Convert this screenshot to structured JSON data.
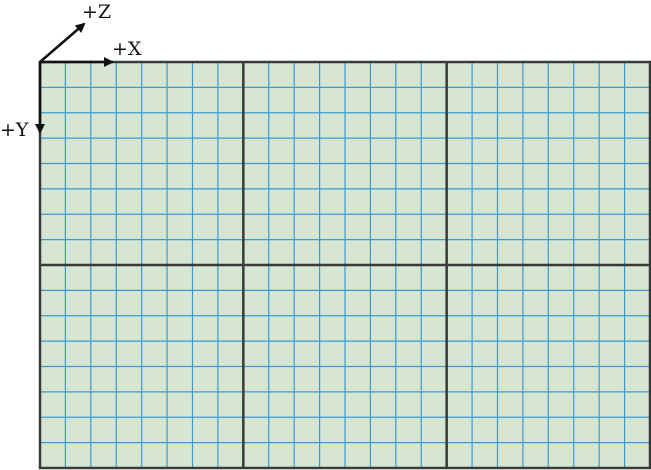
{
  "grid": {
    "background_color": "#d6e6d3",
    "minor_line_color": "#3d9bd4",
    "major_line_color": "#3a3a3a",
    "columns": 3,
    "rows": 2,
    "subdivisions_x": 8,
    "subdivisions_y": 8
  },
  "axes": {
    "color": "#111111",
    "x_label": "+X",
    "y_label": "+Y",
    "z_label": "+Z"
  }
}
